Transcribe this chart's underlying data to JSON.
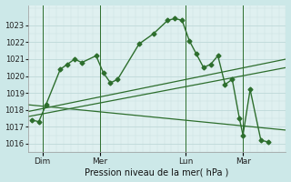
{
  "bg_color": "#cce8e8",
  "plot_bg": "#dff0f0",
  "grid_color_major": "#b8d4d4",
  "grid_color_minor": "#c8e0e0",
  "line_color": "#2d6e2d",
  "title": "Pression niveau de la mer( hPa )",
  "ylim": [
    1015.5,
    1024.2
  ],
  "yticks": [
    1016,
    1017,
    1018,
    1019,
    1020,
    1021,
    1022,
    1023
  ],
  "xtick_labels": [
    "Dim",
    "Mer",
    "Lun",
    "Mar"
  ],
  "xtick_positions": [
    2,
    10,
    22,
    30
  ],
  "vline_positions": [
    2,
    10,
    22,
    30
  ],
  "xlim": [
    0,
    36
  ],
  "main_x": [
    0.5,
    1.5,
    2.5,
    4.5,
    5.5,
    6.5,
    7.5,
    9.5,
    10.5,
    11.5,
    12.5,
    15.5,
    17.5,
    19.5,
    20.5,
    21.5,
    22.5,
    23.5,
    24.5,
    25.5,
    26.5,
    27.5,
    28.5,
    29.5,
    30.0,
    31.0,
    32.5,
    33.5
  ],
  "main_y": [
    1017.4,
    1017.3,
    1018.3,
    1020.4,
    1020.7,
    1021.0,
    1020.8,
    1021.2,
    1020.2,
    1019.6,
    1019.8,
    1021.9,
    1022.5,
    1023.3,
    1023.4,
    1023.3,
    1022.1,
    1021.3,
    1020.5,
    1020.7,
    1021.2,
    1019.5,
    1019.8,
    1017.5,
    1016.5,
    1019.2,
    1016.2,
    1016.1
  ],
  "line1_x": [
    0,
    36
  ],
  "line1_y": [
    1017.6,
    1020.5
  ],
  "line2_x": [
    0,
    36
  ],
  "line2_y": [
    1017.9,
    1021.0
  ],
  "line3_x": [
    0,
    36
  ],
  "line3_y": [
    1018.3,
    1016.8
  ]
}
